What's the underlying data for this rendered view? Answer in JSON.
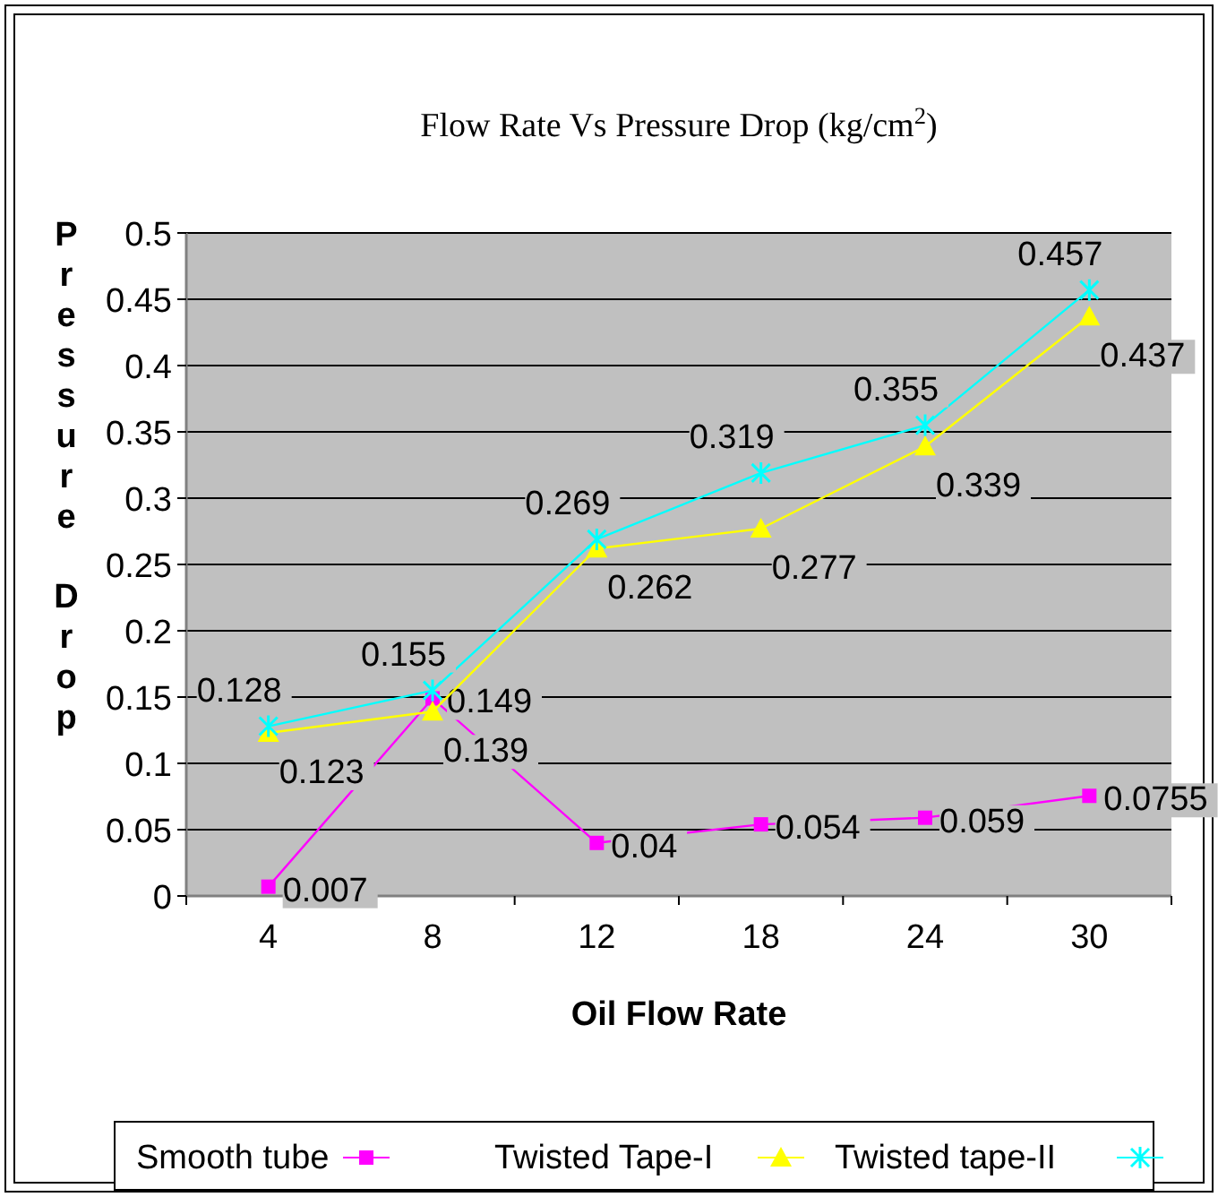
{
  "chart_data": {
    "type": "line",
    "title": "Flow Rate Vs Pressure Drop (kg/cm$^{2}$)",
    "xlabel": "Oil Flow Rate",
    "ylabel": "Pressure Drop",
    "categories": [
      "4",
      "8",
      "12",
      "18",
      "24",
      "30"
    ],
    "ylim": [
      0,
      0.5
    ],
    "yticks": [
      0,
      0.05,
      0.1,
      0.15,
      0.2,
      0.25,
      0.3,
      0.35,
      0.4,
      0.45,
      0.5
    ],
    "grid": "y",
    "legend": "bottom",
    "data_labels": true,
    "series": [
      {
        "name": "Smooth tube",
        "color": "#ff00ff",
        "marker": "square",
        "values": [
          0.007,
          0.149,
          0.04,
          0.054,
          0.059,
          0.0755
        ]
      },
      {
        "name": "Twisted Tape-I",
        "color": "#ffff00",
        "marker": "triangle",
        "values": [
          0.123,
          0.139,
          0.262,
          0.277,
          0.339,
          0.437
        ]
      },
      {
        "name": "Twisted tape-II",
        "color": "#00ffff",
        "marker": "cross",
        "values": [
          0.128,
          0.155,
          0.269,
          0.319,
          0.355,
          0.457
        ]
      }
    ]
  }
}
